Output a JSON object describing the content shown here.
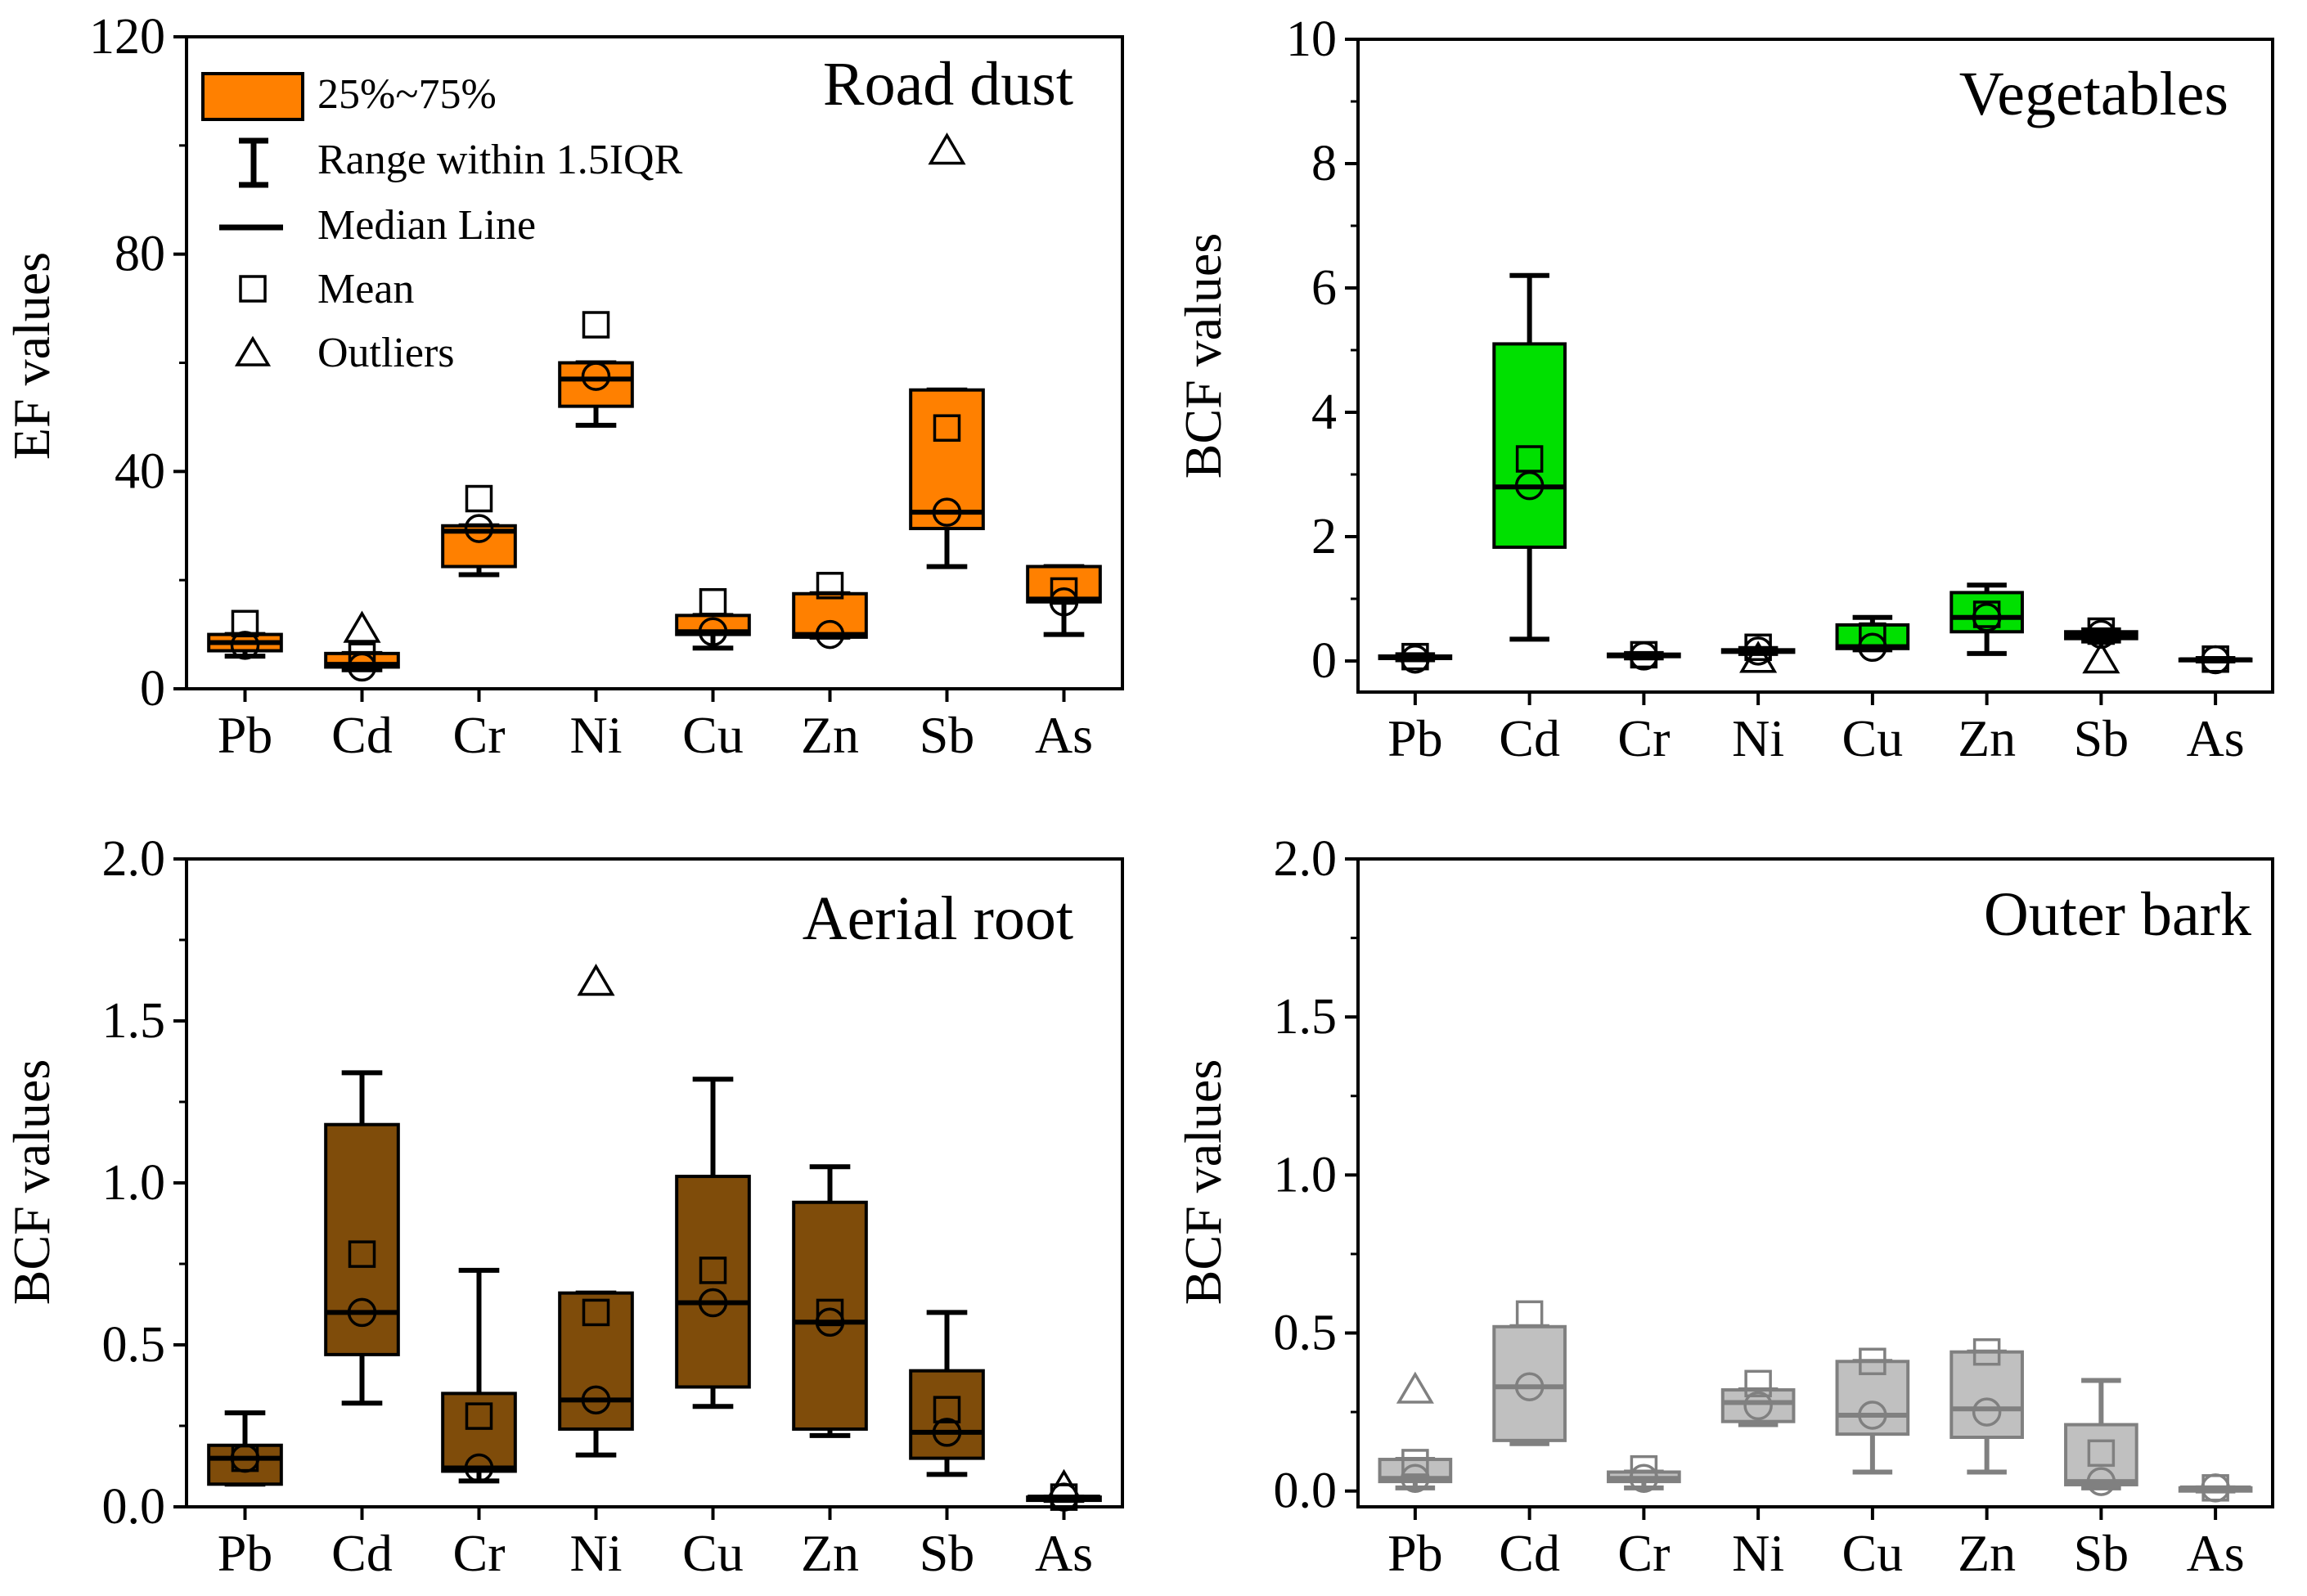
{
  "legend": {
    "box_label": "25%~75%",
    "whisker_label": "Range within 1.5IQR",
    "median_label": "Median Line",
    "mean_label": "Mean",
    "outlier_label": "Outliers"
  },
  "chart_data": [
    {
      "type": "box",
      "title": "Road dust",
      "ylabel": "EF values",
      "xlabel": "",
      "ylim": [
        0,
        120
      ],
      "yticks": [
        0,
        40,
        80,
        120
      ],
      "ytick_labels": [
        "0",
        "40",
        "80",
        "120"
      ],
      "fill": "#FF8000",
      "stroke": "#000000",
      "mark_color": "#000000",
      "categories": [
        "Pb",
        "Cd",
        "Cr",
        "Ni",
        "Cu",
        "Zn",
        "Sb",
        "As"
      ],
      "boxes": [
        {
          "min": 6,
          "q1": 7,
          "median": 8.5,
          "q3": 10,
          "max": 10,
          "mean": 12,
          "circle": 8,
          "outliers": []
        },
        {
          "min": 3.5,
          "q1": 4,
          "median": 4.5,
          "q3": 6.5,
          "max": 6.5,
          "mean": 6,
          "circle": 4,
          "outliers": [
            11
          ]
        },
        {
          "min": 21,
          "q1": 22.5,
          "median": 29,
          "q3": 30,
          "max": 30,
          "mean": 35,
          "circle": 29.5,
          "outliers": []
        },
        {
          "min": 48.5,
          "q1": 52,
          "median": 57,
          "q3": 60,
          "max": 60,
          "mean": 67,
          "circle": 57.5,
          "outliers": []
        },
        {
          "min": 7.5,
          "q1": 10,
          "median": 10.5,
          "q3": 13.5,
          "max": 13.5,
          "mean": 16,
          "circle": 10.5,
          "outliers": []
        },
        {
          "min": 9.5,
          "q1": 9.5,
          "median": 10,
          "q3": 17.5,
          "max": 17.5,
          "mean": 19,
          "circle": 10,
          "outliers": []
        },
        {
          "min": 22.5,
          "q1": 29.5,
          "median": 32.5,
          "q3": 55,
          "max": 55,
          "mean": 48,
          "circle": 32.5,
          "outliers": [
            99
          ]
        },
        {
          "min": 10,
          "q1": 16,
          "median": 16.5,
          "q3": 22.5,
          "max": 22.5,
          "mean": 18,
          "circle": 16,
          "outliers": []
        }
      ]
    },
    {
      "type": "box",
      "title": "Vegetables",
      "ylabel": "BCF values",
      "xlabel": "",
      "ylim": [
        -0.5,
        10
      ],
      "yticks": [
        0,
        2,
        4,
        6,
        8,
        10
      ],
      "ytick_labels": [
        "0",
        "2",
        "4",
        "6",
        "8",
        "10"
      ],
      "fill": "#00E000",
      "stroke": "#000000",
      "mark_color": "#000000",
      "categories": [
        "Pb",
        "Cd",
        "Cr",
        "Ni",
        "Cu",
        "Zn",
        "Sb",
        "As"
      ],
      "boxes": [
        {
          "min": 0.02,
          "q1": 0.04,
          "median": 0.06,
          "q3": 0.08,
          "max": 0.1,
          "mean": 0.07,
          "circle": 0.03,
          "outliers": []
        },
        {
          "min": 0.35,
          "q1": 1.83,
          "median": 2.8,
          "q3": 5.1,
          "max": 6.2,
          "mean": 3.25,
          "circle": 2.82,
          "outliers": []
        },
        {
          "min": 0.05,
          "q1": 0.07,
          "median": 0.09,
          "q3": 0.11,
          "max": 0.12,
          "mean": 0.1,
          "circle": 0.08,
          "outliers": []
        },
        {
          "min": 0.12,
          "q1": 0.14,
          "median": 0.16,
          "q3": 0.18,
          "max": 0.2,
          "mean": 0.22,
          "circle": 0.16,
          "outliers": [
            0.03
          ]
        },
        {
          "min": 0.18,
          "q1": 0.2,
          "median": 0.23,
          "q3": 0.58,
          "max": 0.7,
          "mean": 0.4,
          "circle": 0.22,
          "outliers": []
        },
        {
          "min": 0.12,
          "q1": 0.47,
          "median": 0.7,
          "q3": 1.1,
          "max": 1.22,
          "mean": 0.75,
          "circle": 0.7,
          "outliers": []
        },
        {
          "min": 0.32,
          "q1": 0.36,
          "median": 0.42,
          "q3": 0.47,
          "max": 0.5,
          "mean": 0.48,
          "circle": 0.43,
          "outliers": [
            0.02
          ]
        },
        {
          "min": 0.0,
          "q1": 0.01,
          "median": 0.02,
          "q3": 0.03,
          "max": 0.04,
          "mean": 0.03,
          "circle": 0.02,
          "outliers": []
        }
      ]
    },
    {
      "type": "box",
      "title": "Aerial root",
      "ylabel": "BCF values",
      "xlabel": "",
      "ylim": [
        0,
        2.0
      ],
      "yticks": [
        0,
        0.5,
        1.0,
        1.5,
        2.0
      ],
      "ytick_labels": [
        "0.0",
        "0.5",
        "1.0",
        "1.5",
        "2.0"
      ],
      "fill": "#7F4C0A",
      "stroke": "#000000",
      "mark_color": "#000000",
      "categories": [
        "Pb",
        "Cd",
        "Cr",
        "Ni",
        "Cu",
        "Zn",
        "Sb",
        "As"
      ],
      "boxes": [
        {
          "min": 0.07,
          "q1": 0.07,
          "median": 0.15,
          "q3": 0.19,
          "max": 0.29,
          "mean": 0.15,
          "circle": 0.15,
          "outliers": []
        },
        {
          "min": 0.32,
          "q1": 0.47,
          "median": 0.6,
          "q3": 1.18,
          "max": 1.34,
          "mean": 0.78,
          "circle": 0.6,
          "outliers": []
        },
        {
          "min": 0.08,
          "q1": 0.11,
          "median": 0.12,
          "q3": 0.35,
          "max": 0.73,
          "mean": 0.28,
          "circle": 0.12,
          "outliers": []
        },
        {
          "min": 0.16,
          "q1": 0.24,
          "median": 0.33,
          "q3": 0.66,
          "max": 0.66,
          "mean": 0.6,
          "circle": 0.33,
          "outliers": [
            1.62
          ]
        },
        {
          "min": 0.31,
          "q1": 0.37,
          "median": 0.63,
          "q3": 1.02,
          "max": 1.32,
          "mean": 0.73,
          "circle": 0.63,
          "outliers": []
        },
        {
          "min": 0.22,
          "q1": 0.24,
          "median": 0.57,
          "q3": 0.94,
          "max": 1.05,
          "mean": 0.6,
          "circle": 0.57,
          "outliers": []
        },
        {
          "min": 0.1,
          "q1": 0.15,
          "median": 0.23,
          "q3": 0.42,
          "max": 0.6,
          "mean": 0.3,
          "circle": 0.23,
          "outliers": []
        },
        {
          "min": 0.02,
          "q1": 0.02,
          "median": 0.03,
          "q3": 0.03,
          "max": 0.03,
          "mean": 0.03,
          "circle": 0.03,
          "outliers": [
            0.06
          ]
        }
      ]
    },
    {
      "type": "box",
      "title": "Outer bark",
      "ylabel": "BCF values",
      "xlabel": "",
      "ylim": [
        -0.05,
        2.0
      ],
      "yticks": [
        0,
        0.5,
        1.0,
        1.5,
        2.0
      ],
      "ytick_labels": [
        "0.0",
        "0.5",
        "1.0",
        "1.5",
        "2.0"
      ],
      "fill": "#C0C0C0",
      "stroke": "#808080",
      "mark_color": "#808080",
      "categories": [
        "Pb",
        "Cd",
        "Cr",
        "Ni",
        "Cu",
        "Zn",
        "Sb",
        "As"
      ],
      "boxes": [
        {
          "min": 0.01,
          "q1": 0.03,
          "median": 0.04,
          "q3": 0.1,
          "max": 0.1,
          "mean": 0.09,
          "circle": 0.04,
          "outliers": [
            0.32
          ]
        },
        {
          "min": 0.15,
          "q1": 0.16,
          "median": 0.33,
          "q3": 0.52,
          "max": 0.52,
          "mean": 0.56,
          "circle": 0.33,
          "outliers": []
        },
        {
          "min": 0.01,
          "q1": 0.03,
          "median": 0.04,
          "q3": 0.06,
          "max": 0.06,
          "mean": 0.07,
          "circle": 0.04,
          "outliers": []
        },
        {
          "min": 0.21,
          "q1": 0.22,
          "median": 0.28,
          "q3": 0.32,
          "max": 0.32,
          "mean": 0.34,
          "circle": 0.27,
          "outliers": []
        },
        {
          "min": 0.06,
          "q1": 0.18,
          "median": 0.24,
          "q3": 0.41,
          "max": 0.41,
          "mean": 0.41,
          "circle": 0.24,
          "outliers": []
        },
        {
          "min": 0.06,
          "q1": 0.17,
          "median": 0.26,
          "q3": 0.44,
          "max": 0.44,
          "mean": 0.44,
          "circle": 0.25,
          "outliers": []
        },
        {
          "min": 0.01,
          "q1": 0.02,
          "median": 0.03,
          "q3": 0.21,
          "max": 0.35,
          "mean": 0.12,
          "circle": 0.03,
          "outliers": []
        },
        {
          "min": 0.0,
          "q1": 0.0,
          "median": 0.01,
          "q3": 0.01,
          "max": 0.01,
          "mean": 0.01,
          "circle": 0.01,
          "outliers": []
        }
      ]
    }
  ]
}
